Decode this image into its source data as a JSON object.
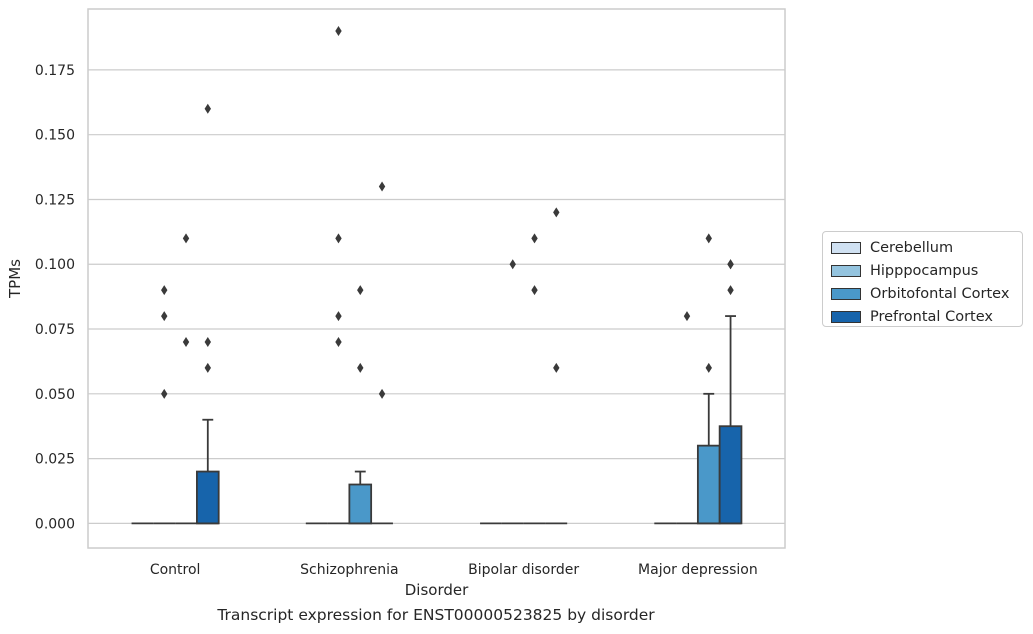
{
  "chart_data": {
    "type": "box",
    "title": "Transcript expression for ENST00000523825 by disorder",
    "xlabel": "Disorder",
    "ylabel": "TPMs",
    "ylim": [
      -0.0095,
      0.1985
    ],
    "yticks": [
      "0.000",
      "0.025",
      "0.050",
      "0.075",
      "0.100",
      "0.125",
      "0.150",
      "0.175"
    ],
    "ytick_values": [
      0,
      0.025,
      0.05,
      0.075,
      0.1,
      0.125,
      0.15,
      0.175
    ],
    "categories": [
      "Control",
      "Schizophrenia",
      "Bipolar disorder",
      "Major depression"
    ],
    "grid": "horizontal",
    "legend_position": "right",
    "series": [
      {
        "name": "Cerebellum",
        "color": "#d0e1f2",
        "boxes": [
          {
            "q1": 0,
            "median": 0,
            "q3": 0,
            "whisker_low": 0,
            "whisker_high": 0,
            "outliers": []
          },
          {
            "q1": 0,
            "median": 0,
            "q3": 0,
            "whisker_low": 0,
            "whisker_high": 0,
            "outliers": []
          },
          {
            "q1": 0,
            "median": 0,
            "q3": 0,
            "whisker_low": 0,
            "whisker_high": 0,
            "outliers": []
          },
          {
            "q1": 0,
            "median": 0,
            "q3": 0,
            "whisker_low": 0,
            "whisker_high": 0,
            "outliers": []
          }
        ]
      },
      {
        "name": "Hipppocampus",
        "color": "#94c4df",
        "boxes": [
          {
            "q1": 0,
            "median": 0,
            "q3": 0,
            "whisker_low": 0,
            "whisker_high": 0,
            "outliers": [
              0.05,
              0.09,
              0.08
            ]
          },
          {
            "q1": 0,
            "median": 0,
            "q3": 0,
            "whisker_low": 0,
            "whisker_high": 0,
            "outliers": [
              0.19,
              0.11,
              0.08,
              0.07
            ]
          },
          {
            "q1": 0,
            "median": 0,
            "q3": 0,
            "whisker_low": 0,
            "whisker_high": 0,
            "outliers": [
              0.1
            ]
          },
          {
            "q1": 0,
            "median": 0,
            "q3": 0,
            "whisker_low": 0,
            "whisker_high": 0,
            "outliers": [
              0.08
            ]
          }
        ]
      },
      {
        "name": "Orbitofontal Cortex",
        "color": "#4a98c9",
        "boxes": [
          {
            "q1": 0,
            "median": 0,
            "q3": 0,
            "whisker_low": 0,
            "whisker_high": 0,
            "outliers": [
              0.11,
              0.07
            ]
          },
          {
            "q1": 0,
            "median": 0,
            "q3": 0.015,
            "whisker_low": 0,
            "whisker_high": 0.02,
            "outliers": [
              0.09,
              0.06
            ]
          },
          {
            "q1": 0,
            "median": 0,
            "q3": 0,
            "whisker_low": 0,
            "whisker_high": 0,
            "outliers": [
              0.11,
              0.09
            ]
          },
          {
            "q1": 0,
            "median": 0,
            "q3": 0.03,
            "whisker_low": 0,
            "whisker_high": 0.05,
            "outliers": [
              0.11,
              0.06
            ]
          }
        ]
      },
      {
        "name": "Prefrontal Cortex",
        "color": "#1764ab",
        "boxes": [
          {
            "q1": 0,
            "median": 0,
            "q3": 0.02,
            "whisker_low": 0,
            "whisker_high": 0.04,
            "outliers": [
              0.16,
              0.07,
              0.06
            ]
          },
          {
            "q1": 0,
            "median": 0,
            "q3": 0,
            "whisker_low": 0,
            "whisker_high": 0,
            "outliers": [
              0.13,
              0.05
            ]
          },
          {
            "q1": 0,
            "median": 0,
            "q3": 0,
            "whisker_low": 0,
            "whisker_high": 0,
            "outliers": [
              0.12,
              0.06
            ]
          },
          {
            "q1": 0,
            "median": 0,
            "q3": 0.0375,
            "whisker_low": 0,
            "whisker_high": 0.08,
            "outliers": [
              0.1,
              0.09,
              0.1
            ]
          }
        ]
      }
    ]
  }
}
